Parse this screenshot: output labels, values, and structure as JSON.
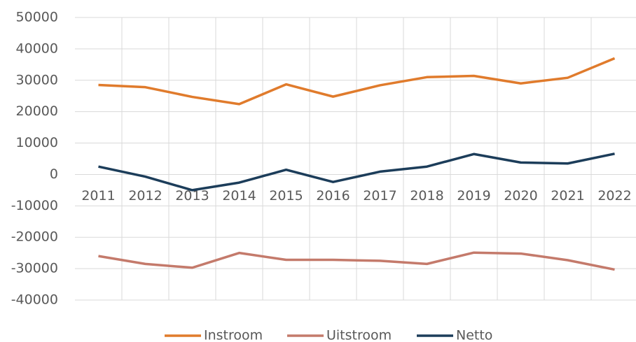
{
  "chart_data": {
    "type": "line",
    "categories": [
      "2011",
      "2012",
      "2013",
      "2014",
      "2015",
      "2016",
      "2017",
      "2018",
      "2019",
      "2020",
      "2021",
      "2022"
    ],
    "series": [
      {
        "name": "Instroom",
        "color": "#e07b2c",
        "values": [
          28500,
          27800,
          24700,
          22400,
          28700,
          24800,
          28400,
          31000,
          31400,
          29000,
          30800,
          37000
        ]
      },
      {
        "name": "Uitstroom",
        "color": "#c47a6b",
        "values": [
          -26000,
          -28500,
          -29700,
          -25000,
          -27200,
          -27200,
          -27500,
          -28500,
          -24900,
          -25200,
          -27300,
          -30300
        ]
      },
      {
        "name": "Netto",
        "color": "#1c3d5a",
        "values": [
          2500,
          -700,
          -5000,
          -2600,
          1500,
          -2400,
          900,
          2500,
          6500,
          3800,
          3500,
          6600
        ]
      }
    ],
    "ylim": [
      -40000,
      50000
    ],
    "yticks": [
      -40000,
      -30000,
      -20000,
      -10000,
      0,
      10000,
      20000,
      30000,
      40000,
      50000
    ],
    "grid": true,
    "legend": "bottom"
  }
}
